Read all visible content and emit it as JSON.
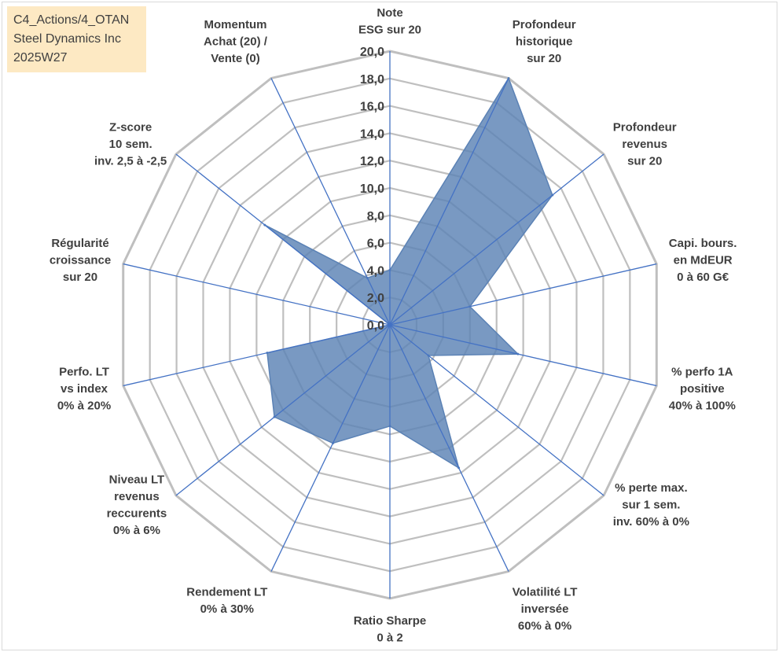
{
  "info_box": {
    "line1": "C4_Actions/4_OTAN",
    "line2": "Steel Dynamics Inc",
    "line3": "2025W27"
  },
  "colors": {
    "fill": "#5b82b5",
    "axis_line": "#4472c4",
    "ring": "#bfbfbf",
    "text": "#404040",
    "info_bg": "#fde9c3"
  },
  "chart_data": {
    "type": "radar",
    "title": "",
    "rmin": 0,
    "rmax": 20,
    "tick_step": 2,
    "tick_labels": [
      "0,0",
      "2,0",
      "4,0",
      "6,0",
      "8,0",
      "10,0",
      "12,0",
      "14,0",
      "16,0",
      "18,0",
      "20,0"
    ],
    "grid": true,
    "legend": "none",
    "categories": [
      {
        "lines": [
          "Note",
          "ESG sur 20"
        ]
      },
      {
        "lines": [
          "Profondeur",
          "historique",
          "sur 20"
        ]
      },
      {
        "lines": [
          "Profondeur",
          "revenus",
          "sur 20"
        ]
      },
      {
        "lines": [
          "Capi. bours.",
          "en MdEUR",
          "0 à 60 G€"
        ]
      },
      {
        "lines": [
          "% perfo 1A",
          "positive",
          "40% à 100%"
        ]
      },
      {
        "lines": [
          "% perte max.",
          "sur 1 sem.",
          "inv. 60% à 0%"
        ]
      },
      {
        "lines": [
          "Volatilité LT",
          "inversée",
          "60% à 0%"
        ]
      },
      {
        "lines": [
          "Ratio Sharpe",
          "0 à 2"
        ]
      },
      {
        "lines": [
          "Rendement LT",
          "0% à 30%"
        ]
      },
      {
        "lines": [
          "Niveau LT",
          "revenus",
          "reccurents",
          "0% à 6%"
        ]
      },
      {
        "lines": [
          "Perfo. LT",
          "vs index",
          "0% à 20%"
        ]
      },
      {
        "lines": [
          "Régularité",
          "croissance",
          "sur 20"
        ]
      },
      {
        "lines": [
          "Z-score",
          "10 sem.",
          "inv. 2,5 à -2,5"
        ]
      },
      {
        "lines": [
          "Momentum",
          "Achat (20) /",
          "Vente (0)"
        ]
      }
    ],
    "series": [
      {
        "values": [
          4.0,
          20.0,
          15.2,
          6.0,
          9.6,
          3.6,
          11.6,
          7.4,
          9.6,
          10.8,
          9.2,
          0.0,
          11.7,
          3.8
        ]
      }
    ]
  }
}
